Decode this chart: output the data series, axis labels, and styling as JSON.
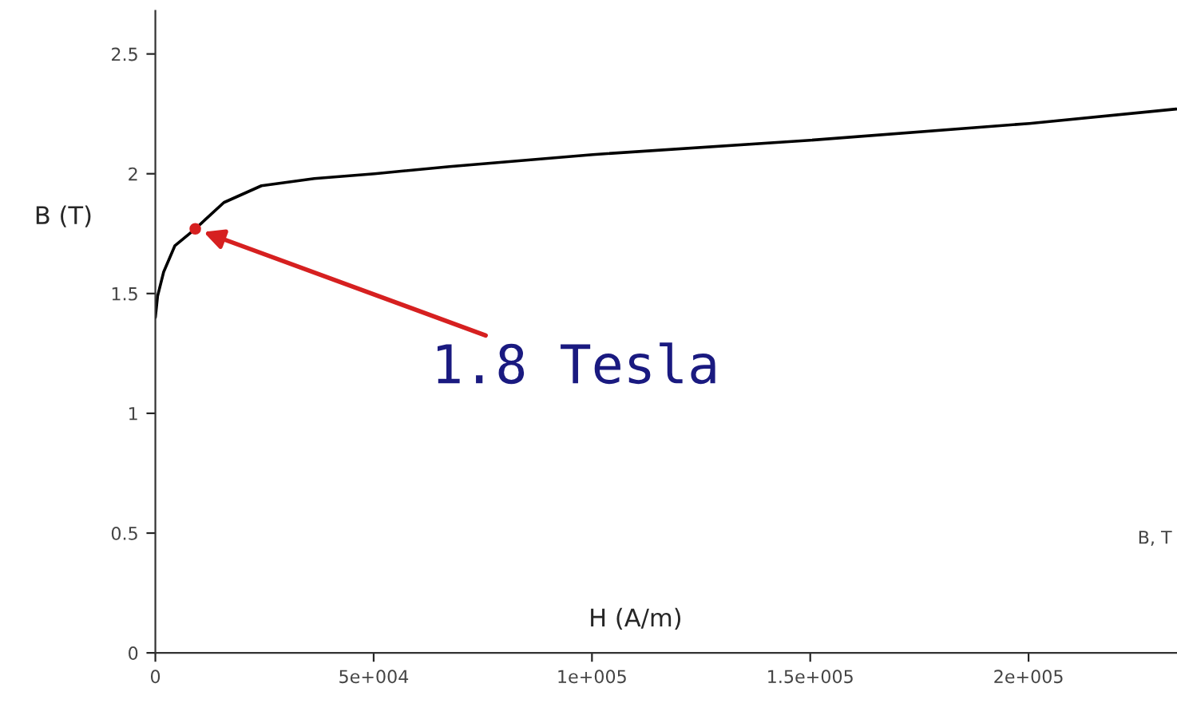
{
  "chart_data": {
    "type": "line",
    "xlabel": "H (A/m)",
    "ylabel": "B (T)",
    "series": [
      {
        "color": "#000000",
        "x": [
          0,
          517,
          1900,
          4480,
          9140,
          15700,
          24300,
          36400,
          50200,
          67400,
          100200,
          150000,
          200200,
          233800
        ],
        "values": [
          1.4,
          1.49,
          1.59,
          1.7,
          1.77,
          1.88,
          1.95,
          1.98,
          2.0,
          2.03,
          2.08,
          2.14,
          2.21,
          2.27
        ]
      },
      {
        "type": "scatter",
        "color": "#d62020",
        "x": [
          9140
        ],
        "values": [
          1.77
        ]
      }
    ],
    "annotations": [
      {
        "text": "1.8 Tesla",
        "x": 9140,
        "y": 1.77
      },
      "B, T"
    ],
    "xlim": [
      0,
      234000
    ],
    "ylim": [
      0,
      2.68
    ],
    "xticks": [
      0,
      {
        "value": 50000,
        "label": "5e+004"
      },
      {
        "value": 100000,
        "label": "1e+005"
      },
      {
        "value": 150000,
        "label": "1.5e+005"
      },
      {
        "value": 200000,
        "label": "2e+005"
      }
    ],
    "yticks": [
      0,
      0.5,
      1,
      1.5,
      2,
      2.5
    ],
    "grid": false,
    "legend": false
  }
}
